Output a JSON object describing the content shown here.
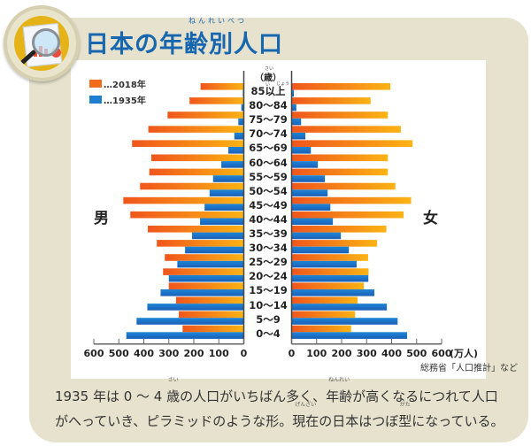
{
  "header": {
    "title": "日本の年齢別人口",
    "title_ruby": "ねんれいべつ",
    "icon": "magnifier-report-icon"
  },
  "legend": [
    {
      "label": "…2018年",
      "color": "#f26a1b"
    },
    {
      "label": "…1935年",
      "color": "#1e7fd0"
    }
  ],
  "labels": {
    "male": "男",
    "female": "女",
    "age_unit": "（歳）",
    "age_unit_ruby": "さい",
    "over_ruby_1": "い",
    "over_ruby_2": "じょう",
    "x_unit": "(万人)"
  },
  "source": "総務省「人口推計」など",
  "caption": {
    "line1_parts": [
      "1935 年は 0 ～ 4 ",
      "歳",
      "の人口がいちばん多く、",
      "年齢",
      "が高くなるにつれて人口"
    ],
    "line1_ruby": [
      "さい",
      "ねんれい"
    ],
    "line2_parts": [
      "がへっていき、ピラミッドのような形。",
      "現在",
      "の日本はつぼ",
      "型",
      "になっている。"
    ],
    "line2_ruby": [
      "げんざい",
      "がた"
    ]
  },
  "chart_data": {
    "type": "bar",
    "subtype": "population-pyramid",
    "title": "日本の年齢別人口",
    "xlabel": "(万人)",
    "ylabel": "（歳）",
    "xlim": [
      0,
      600
    ],
    "x_ticks": [
      0,
      100,
      200,
      300,
      400,
      500,
      600
    ],
    "legend_position": "top-left",
    "categories": [
      "85以上",
      "80～84",
      "75～79",
      "70～74",
      "65～69",
      "60～64",
      "55～59",
      "50～54",
      "45～49",
      "40～44",
      "35～39",
      "30～34",
      "25～29",
      "20～24",
      "15～19",
      "10～14",
      "5～9",
      "0～4"
    ],
    "series": [
      {
        "name": "2018年 男",
        "side": "left",
        "year": "2018",
        "color": "#f26a1b",
        "values": [
          173,
          217,
          305,
          382,
          447,
          370,
          378,
          415,
          482,
          454,
          384,
          348,
          316,
          323,
          300,
          271,
          260,
          245
        ]
      },
      {
        "name": "1935年 男",
        "side": "left",
        "year": "1935",
        "color": "#1e7fd0",
        "values": [
          4,
          10,
          22,
          38,
          62,
          90,
          123,
          137,
          157,
          175,
          207,
          235,
          266,
          300,
          333,
          386,
          429,
          470
        ]
      },
      {
        "name": "2018年 女",
        "side": "right",
        "year": "2018",
        "color": "#f26a1b",
        "values": [
          395,
          316,
          385,
          437,
          484,
          385,
          385,
          415,
          478,
          448,
          379,
          342,
          306,
          308,
          289,
          264,
          254,
          238
        ]
      },
      {
        "name": "1935年 女",
        "side": "right",
        "year": "1935",
        "color": "#1e7fd0",
        "values": [
          9,
          19,
          38,
          55,
          77,
          105,
          133,
          144,
          155,
          165,
          197,
          229,
          260,
          307,
          331,
          381,
          424,
          462
        ]
      }
    ]
  }
}
